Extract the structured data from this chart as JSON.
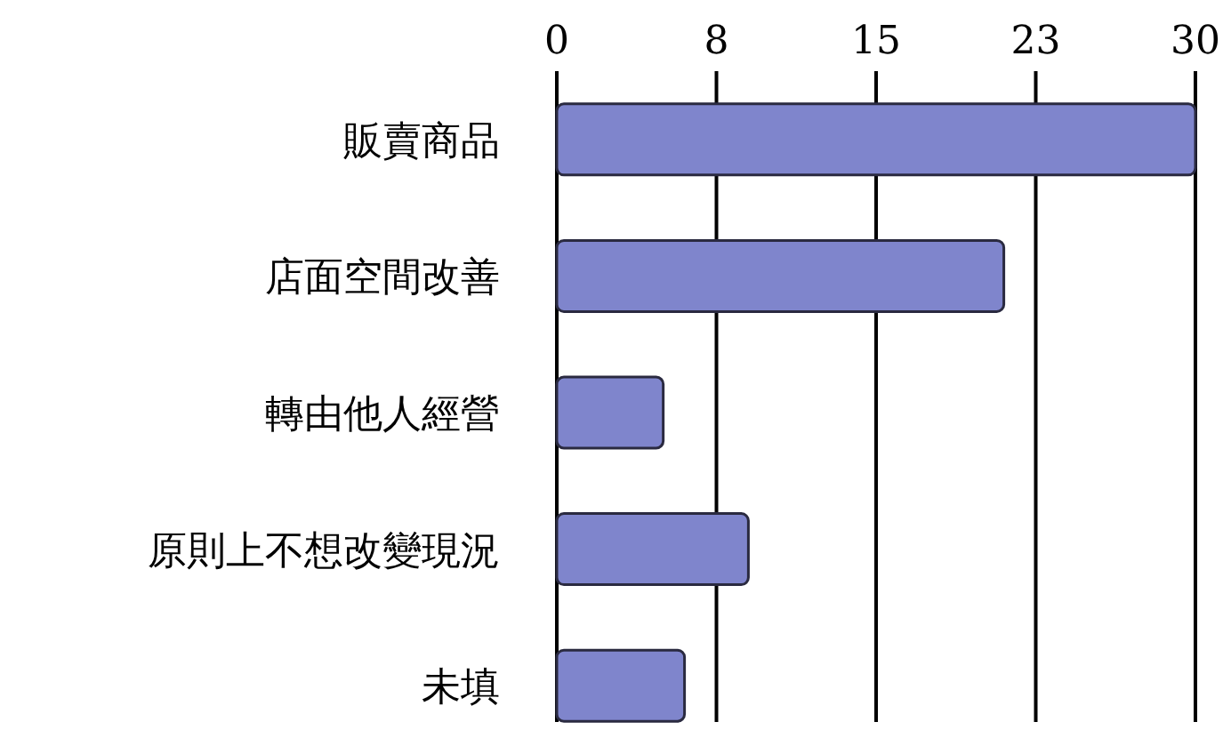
{
  "chart_data": {
    "type": "bar",
    "orientation": "horizontal",
    "categories": [
      "販賣商品",
      "店面空間改善",
      "轉由他人經營",
      "原則上不想改變現況",
      "未填"
    ],
    "values": [
      30,
      21,
      5,
      9,
      6
    ],
    "color": "#7f85cc",
    "xlim": [
      0,
      30
    ],
    "xticks": [
      0,
      {
        "value": 7.5,
        "label": "8"
      },
      15,
      {
        "value": 22.5,
        "label": "23"
      },
      30
    ],
    "grid": "x"
  }
}
